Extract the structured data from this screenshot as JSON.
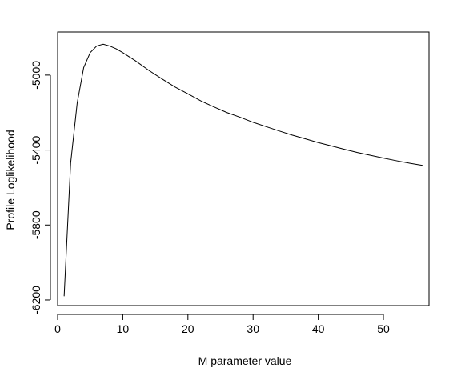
{
  "chart_data": {
    "type": "line",
    "title": "",
    "xlabel": "M parameter value",
    "ylabel": "Profile Loglikelihood",
    "xlim": [
      0,
      57
    ],
    "ylim": [
      -6230,
      -4770
    ],
    "x_ticks": [
      0,
      10,
      20,
      30,
      40,
      50
    ],
    "y_ticks": [
      -6200,
      -5800,
      -5400,
      -5000
    ],
    "grid": false,
    "legend": "none",
    "line_color": "#000000",
    "series": [
      {
        "x": [
          1,
          2,
          3,
          4,
          5,
          6,
          7,
          8,
          9,
          10,
          12,
          14,
          16,
          18,
          20,
          22,
          24,
          26,
          28,
          30,
          32,
          34,
          36,
          38,
          40,
          42,
          44,
          46,
          48,
          50,
          52,
          54,
          56
        ],
        "y": [
          -6180,
          -5470,
          -5150,
          -4960,
          -4880,
          -4845,
          -4835,
          -4845,
          -4860,
          -4880,
          -4925,
          -4975,
          -5020,
          -5063,
          -5100,
          -5138,
          -5170,
          -5200,
          -5225,
          -5252,
          -5275,
          -5298,
          -5320,
          -5340,
          -5360,
          -5378,
          -5396,
          -5413,
          -5428,
          -5443,
          -5457,
          -5470,
          -5482
        ]
      }
    ]
  }
}
